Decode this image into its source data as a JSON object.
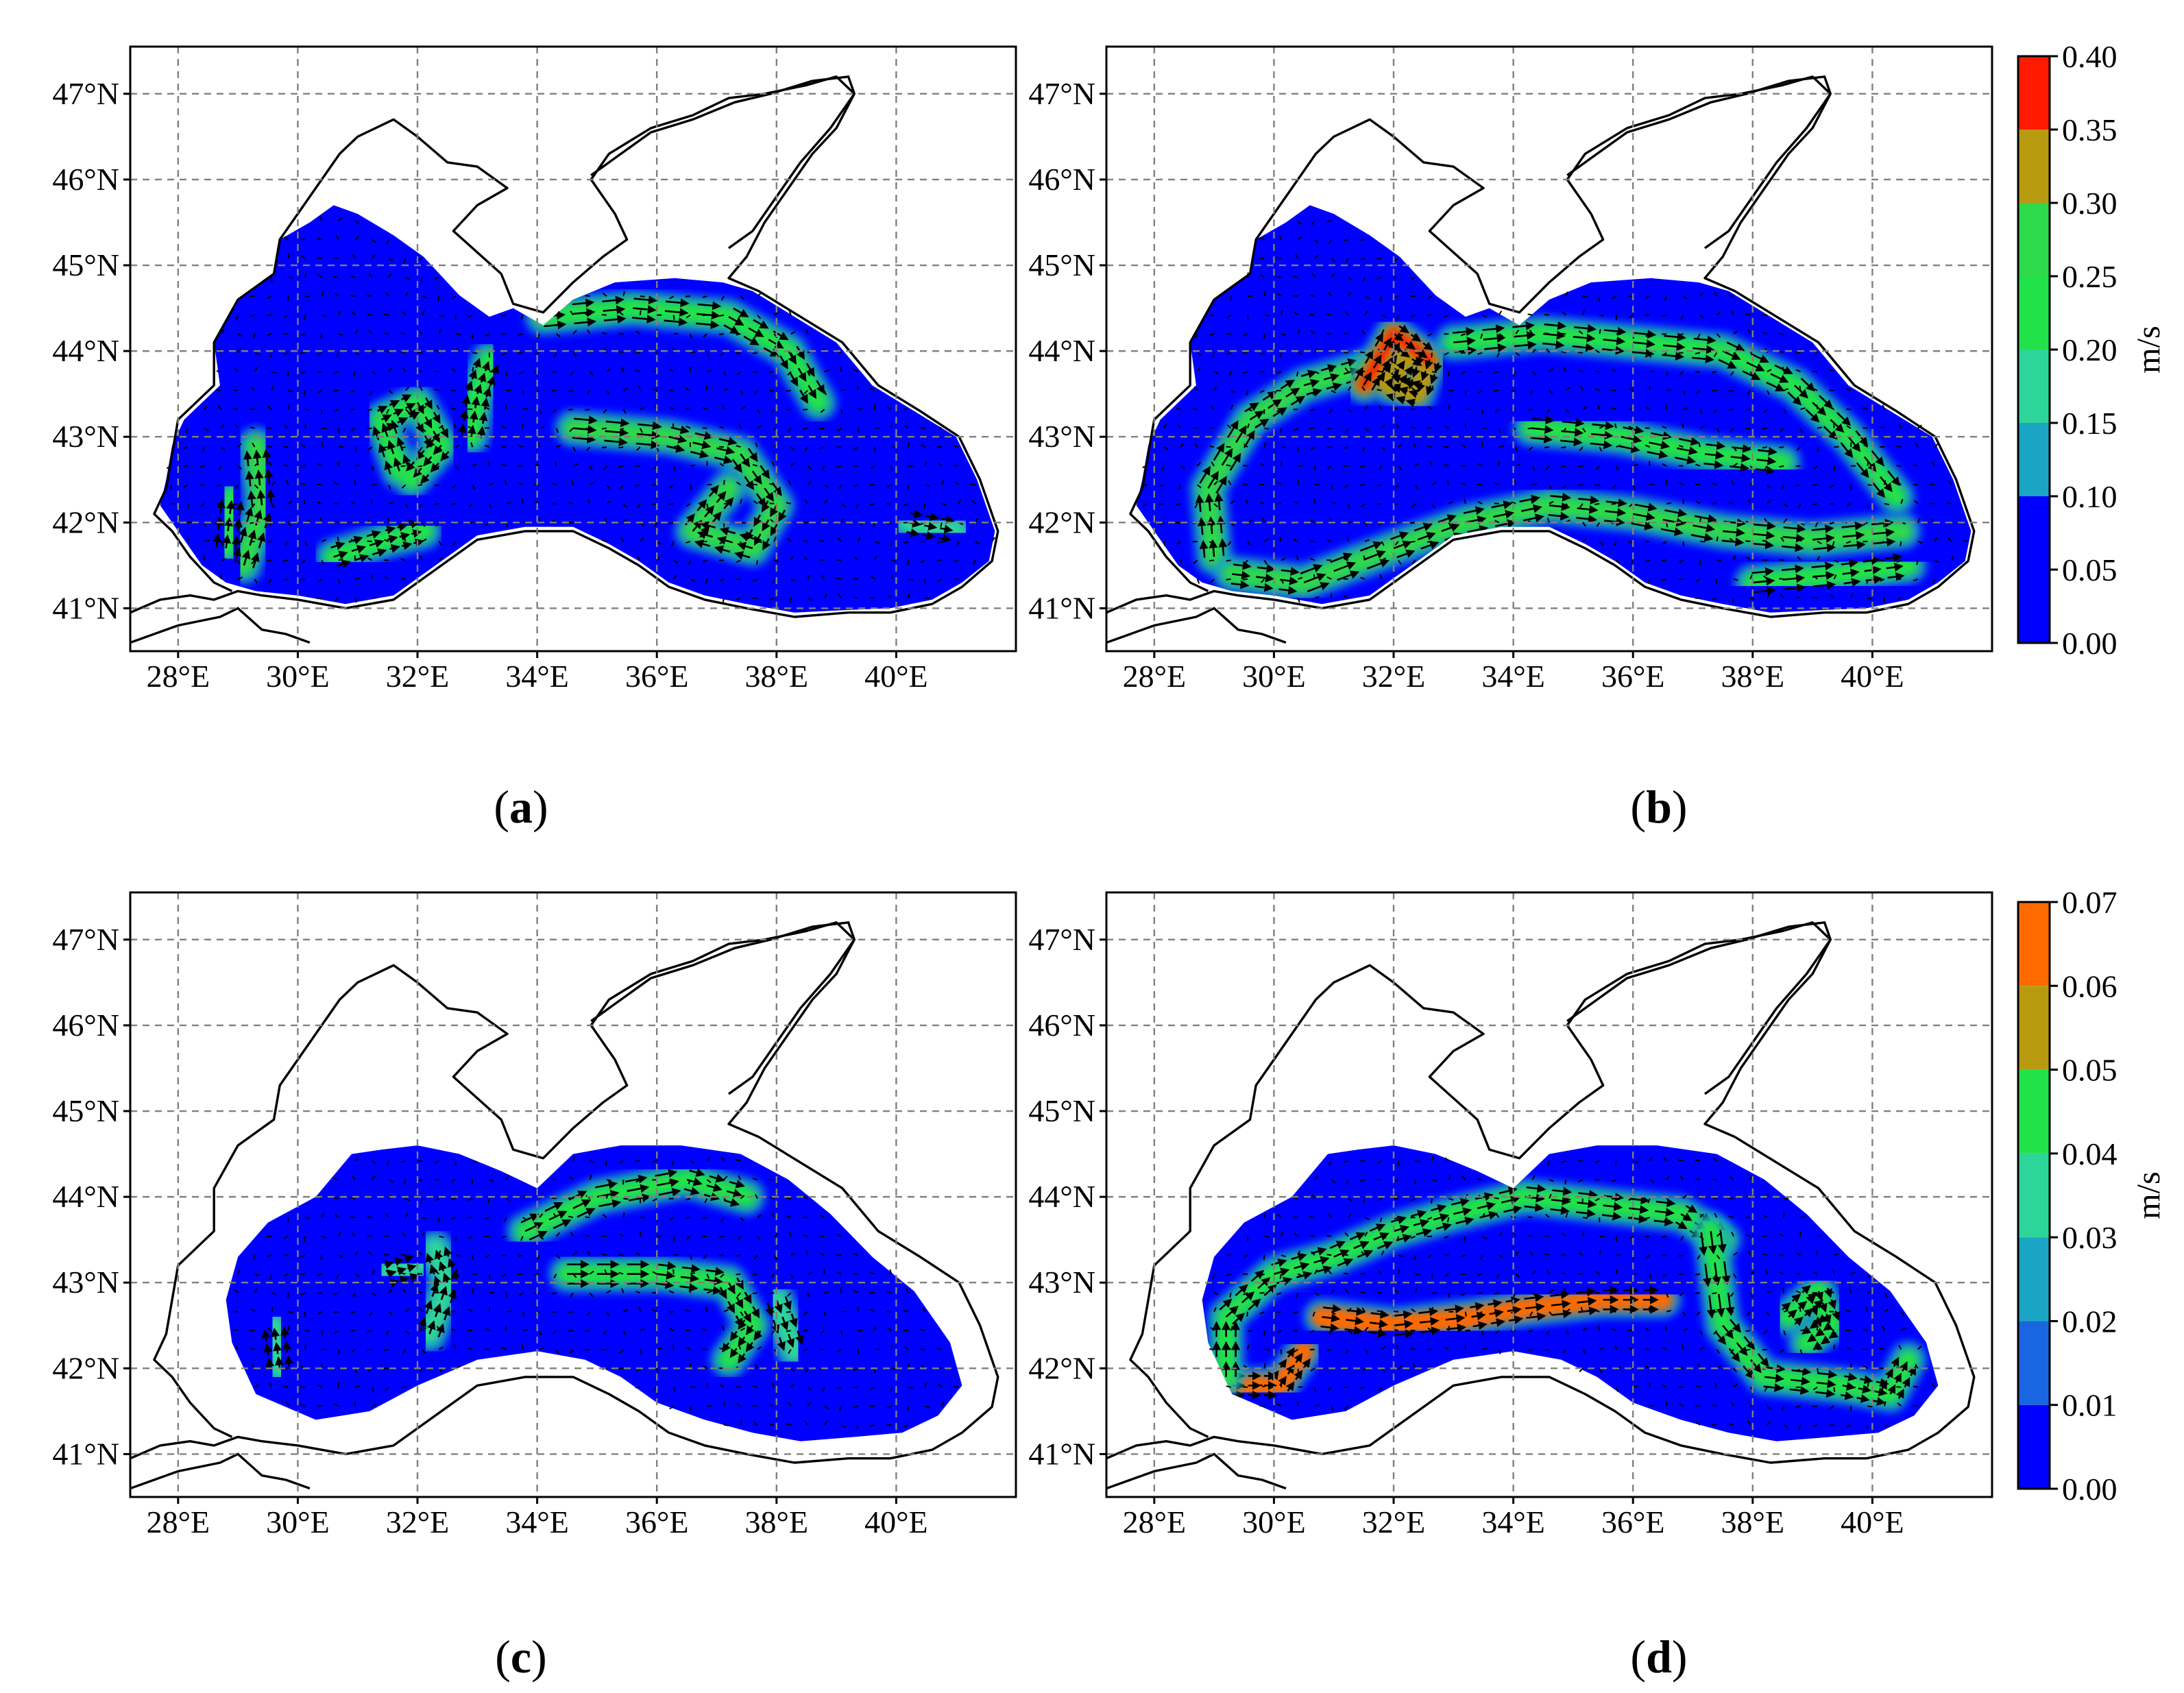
{
  "panels": [
    {
      "id": "a",
      "label": "a",
      "lat_labels": [
        "47°N",
        "46°N",
        "45°N",
        "44°N",
        "43°N",
        "42°N",
        "41°N"
      ],
      "lon_labels": [
        "28°E",
        "30°E",
        "32°E",
        "34°E",
        "36°E",
        "38°E",
        "40°E"
      ],
      "sea_extent": "full",
      "jets": [
        {
          "path": [
            [
              29.1,
              41.5
            ],
            [
              29.4,
              42.2
            ],
            [
              29.3,
              42.9
            ]
          ],
          "level": 0.6
        },
        {
          "path": [
            [
              28.8,
              41.7
            ],
            [
              28.9,
              42.3
            ]
          ],
          "level": 0.5
        },
        {
          "path": [
            [
              30.6,
              41.6
            ],
            [
              31.5,
              41.8
            ],
            [
              32.1,
              41.9
            ]
          ],
          "level": 0.5
        },
        {
          "path": [
            [
              31.7,
              42.6
            ],
            [
              31.4,
              43.2
            ],
            [
              32.0,
              43.4
            ],
            [
              32.4,
              42.9
            ],
            [
              31.9,
              42.5
            ]
          ],
          "level": 0.5
        },
        {
          "path": [
            [
              32.9,
              43.0
            ],
            [
              33.0,
              43.5
            ],
            [
              33.2,
              43.9
            ]
          ],
          "level": 0.45
        },
        {
          "path": [
            [
              34.1,
              44.4
            ],
            [
              35.6,
              44.5
            ],
            [
              37.2,
              44.4
            ],
            [
              38.2,
              44.0
            ],
            [
              38.7,
              43.4
            ]
          ],
          "level": 0.45
        },
        {
          "path": [
            [
              34.6,
              43.1
            ],
            [
              36.2,
              43.0
            ],
            [
              37.4,
              42.8
            ],
            [
              38.0,
              42.2
            ],
            [
              37.6,
              41.7
            ],
            [
              36.6,
              41.9
            ],
            [
              37.2,
              42.4
            ]
          ],
          "level": 0.6
        },
        {
          "path": [
            [
              40.2,
              42.0
            ],
            [
              41.0,
              41.9
            ]
          ],
          "level": 0.4
        }
      ]
    },
    {
      "id": "b",
      "label": "b",
      "lat_labels": [
        "47°N",
        "46°N",
        "45°N",
        "44°N",
        "43°N",
        "42°N",
        "41°N"
      ],
      "lon_labels": [
        "28°E",
        "30°E",
        "32°E",
        "34°E",
        "36°E",
        "38°E",
        "40°E"
      ],
      "sea_extent": "full",
      "jets": [
        {
          "path": [
            [
              29.0,
              41.6
            ],
            [
              28.9,
              42.4
            ],
            [
              29.6,
              43.2
            ],
            [
              30.5,
              43.6
            ],
            [
              31.5,
              43.8
            ]
          ],
          "level": 0.6
        },
        {
          "path": [
            [
              29.3,
              41.4
            ],
            [
              30.5,
              41.3
            ],
            [
              32.0,
              41.7
            ],
            [
              33.2,
              42.0
            ],
            [
              34.6,
              42.2
            ],
            [
              36.0,
              42.1
            ],
            [
              37.5,
              41.9
            ],
            [
              39.0,
              41.8
            ],
            [
              40.5,
              41.9
            ]
          ],
          "level": 0.6
        },
        {
          "path": [
            [
              31.5,
              43.6
            ],
            [
              32.0,
              44.2
            ],
            [
              32.6,
              43.9
            ],
            [
              32.4,
              43.5
            ],
            [
              31.9,
              43.6
            ],
            [
              32.2,
              43.9
            ]
          ],
          "level": 0.8
        },
        {
          "path": [
            [
              33.0,
              44.1
            ],
            [
              34.5,
              44.2
            ],
            [
              36.0,
              44.1
            ],
            [
              37.5,
              44.0
            ],
            [
              38.7,
              43.6
            ],
            [
              39.6,
              43.0
            ],
            [
              40.4,
              42.3
            ]
          ],
          "level": 0.55
        },
        {
          "path": [
            [
              34.3,
              43.1
            ],
            [
              35.8,
              43.0
            ],
            [
              37.2,
              42.8
            ],
            [
              38.5,
              42.7
            ]
          ],
          "level": 0.55
        },
        {
          "path": [
            [
              38.0,
              41.3
            ],
            [
              39.5,
              41.4
            ],
            [
              40.6,
              41.5
            ]
          ],
          "level": 0.5
        }
      ]
    },
    {
      "id": "c",
      "label": "c",
      "lat_labels": [
        "47°N",
        "46°N",
        "45°N",
        "44°N",
        "43°N",
        "42°N",
        "41°N"
      ],
      "lon_labels": [
        "28°E",
        "30°E",
        "32°E",
        "34°E",
        "36°E",
        "38°E",
        "40°E"
      ],
      "sea_extent": "shrunk",
      "jets": [
        {
          "path": [
            [
              33.8,
              43.6
            ],
            [
              35.0,
              44.0
            ],
            [
              36.5,
              44.2
            ],
            [
              37.5,
              44.0
            ]
          ],
          "level": 0.5
        },
        {
          "path": [
            [
              34.5,
              43.1
            ],
            [
              36.0,
              43.1
            ],
            [
              37.2,
              43.0
            ],
            [
              37.6,
              42.5
            ],
            [
              37.2,
              42.1
            ]
          ],
          "level": 0.6
        },
        {
          "path": [
            [
              32.2,
              42.4
            ],
            [
              32.5,
              43.0
            ],
            [
              32.3,
              43.4
            ]
          ],
          "level": 0.45
        },
        {
          "path": [
            [
              31.5,
              43.1
            ],
            [
              32.0,
              43.2
            ]
          ],
          "level": 0.4
        },
        {
          "path": [
            [
              29.7,
              42.0
            ],
            [
              29.6,
              42.5
            ]
          ],
          "level": 0.35
        },
        {
          "path": [
            [
              38.0,
              42.8
            ],
            [
              38.3,
              42.2
            ]
          ],
          "level": 0.35
        }
      ]
    },
    {
      "id": "d",
      "label": "d",
      "lat_labels": [
        "47°N",
        "46°N",
        "45°N",
        "44°N",
        "43°N",
        "42°N",
        "41°N"
      ],
      "lon_labels": [
        "28°E",
        "30°E",
        "32°E",
        "34°E",
        "36°E",
        "38°E",
        "40°E"
      ],
      "sea_extent": "shrunk",
      "jets": [
        {
          "path": [
            [
              29.3,
              41.8
            ],
            [
              30.1,
              41.8
            ],
            [
              30.5,
              42.2
            ]
          ],
          "level": 0.9
        },
        {
          "path": [
            [
              29.2,
              41.9
            ],
            [
              29.2,
              42.6
            ],
            [
              30.0,
              43.1
            ],
            [
              31.0,
              43.3
            ],
            [
              32.0,
              43.6
            ],
            [
              33.0,
              43.8
            ],
            [
              34.2,
              44.0
            ],
            [
              35.5,
              43.9
            ],
            [
              36.8,
              43.8
            ],
            [
              37.5,
              43.5
            ]
          ],
          "level": 0.6
        },
        {
          "path": [
            [
              30.8,
              42.6
            ],
            [
              32.0,
              42.5
            ],
            [
              33.3,
              42.6
            ],
            [
              34.2,
              42.7
            ],
            [
              35.5,
              42.8
            ],
            [
              36.5,
              42.8
            ]
          ],
          "level": 0.9
        },
        {
          "path": [
            [
              37.3,
              43.6
            ],
            [
              37.5,
              42.5
            ],
            [
              38.2,
              41.9
            ],
            [
              39.5,
              41.8
            ],
            [
              40.3,
              41.7
            ],
            [
              40.6,
              42.1
            ]
          ],
          "level": 0.6
        },
        {
          "path": [
            [
              38.6,
              42.6
            ],
            [
              39.1,
              42.9
            ],
            [
              39.3,
              42.5
            ],
            [
              38.9,
              42.3
            ]
          ],
          "level": 0.55
        }
      ]
    }
  ],
  "colorbars": [
    {
      "id": "cb-top",
      "panels": [
        "a",
        "b"
      ],
      "unit": "m/s",
      "ticks": [
        "0.00",
        "0.05",
        "0.10",
        "0.15",
        "0.20",
        "0.25",
        "0.30",
        "0.35",
        "0.40"
      ],
      "bands": [
        "#0000ff",
        "#0000ff",
        "#1aa5c4",
        "#2ed59a",
        "#22e24a",
        "#2ed94a",
        "#b89a10",
        "#ff1a00"
      ],
      "band_bounds": [
        0.0,
        0.05,
        0.1,
        0.15,
        0.2,
        0.25,
        0.3,
        0.35,
        0.4
      ]
    },
    {
      "id": "cb-bottom",
      "panels": [
        "c",
        "d"
      ],
      "unit": "m/s",
      "ticks": [
        "0.00",
        "0.01",
        "0.02",
        "0.03",
        "0.04",
        "0.05",
        "0.06",
        "0.07"
      ],
      "bands": [
        "#0000ff",
        "#1a66e0",
        "#1aa5c4",
        "#2ed59a",
        "#22e24a",
        "#b89a10",
        "#ff6a00"
      ],
      "band_bounds": [
        0.0,
        0.01,
        0.02,
        0.03,
        0.04,
        0.05,
        0.06,
        0.07
      ]
    }
  ],
  "colors": {
    "sea_low": "#0000ff",
    "grid": "#808080",
    "coast": "#000000",
    "arrow": "#000000"
  }
}
